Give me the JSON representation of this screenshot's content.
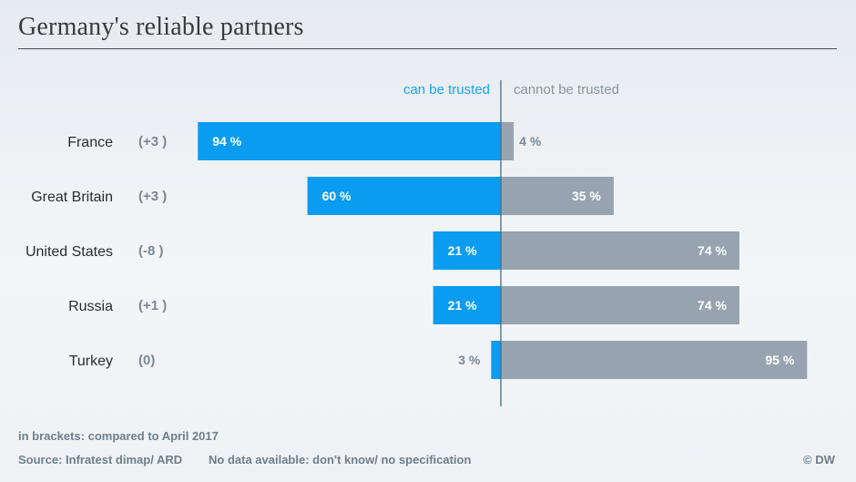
{
  "title": "Germany's reliable partners",
  "colors": {
    "trusted": "#0a9cf0",
    "not_trusted": "#97a4af",
    "divider": "#4a6a86"
  },
  "chart_data": {
    "type": "bar",
    "orientation": "horizontal-diverging",
    "title": "Germany's reliable partners",
    "categories": [
      "France",
      "Great Britain",
      "United States",
      "Russia",
      "Turkey"
    ],
    "changes": [
      "(+3 )",
      "(+3 )",
      "(-8 )",
      "(+1 )",
      "(0)"
    ],
    "series": [
      {
        "name": "can be trusted",
        "values": [
          94,
          60,
          21,
          21,
          3
        ],
        "labels": [
          "94 %",
          "60 %",
          "21 %",
          "21 %",
          "3 %"
        ]
      },
      {
        "name": "cannot be trusted",
        "values": [
          4,
          35,
          74,
          74,
          95
        ],
        "labels": [
          "4 %",
          "35 %",
          "74 %",
          "74 %",
          "95 %"
        ]
      }
    ],
    "xlim": [
      -100,
      100
    ],
    "grid": false
  },
  "footer": {
    "note": "in brackets: compared to April 2017",
    "source": "Source: Infratest dimap/ ARD",
    "no_data": "No data available: don't know/ no specification",
    "credit": "© DW"
  }
}
